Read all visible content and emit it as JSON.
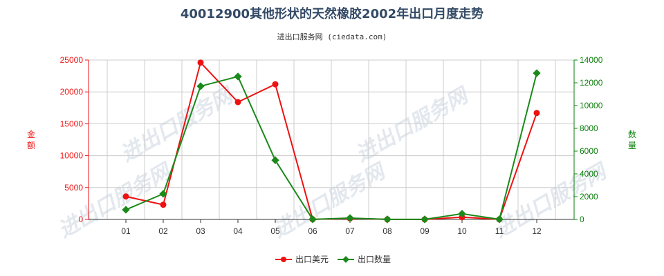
{
  "chart_data": {
    "type": "line",
    "title": "40012900其他形状的天然橡胶2002年出口月度走势",
    "subtitle": "进出口服务网 (ciedata.com)",
    "categories": [
      "01",
      "02",
      "03",
      "04",
      "05",
      "06",
      "07",
      "08",
      "09",
      "10",
      "11",
      "12"
    ],
    "y_left": {
      "label": "金额",
      "min": 0,
      "max": 25000,
      "ticks": [
        0,
        5000,
        10000,
        15000,
        20000,
        25000
      ],
      "color": "#ee1111"
    },
    "y_right": {
      "label": "数量",
      "min": 0,
      "max": 14000,
      "ticks": [
        0,
        2000,
        4000,
        6000,
        8000,
        10000,
        12000,
        14000
      ],
      "color": "#0a7f0a"
    },
    "series": [
      {
        "name": "出口美元",
        "axis": "left",
        "color": "#ee1111",
        "values": [
          3600,
          2300,
          24600,
          18400,
          21200,
          20,
          150,
          10,
          5,
          350,
          20,
          16700
        ]
      },
      {
        "name": "出口数量",
        "axis": "right",
        "color": "#1a8a1a",
        "values": [
          850,
          2250,
          11700,
          12550,
          5200,
          10,
          120,
          5,
          5,
          500,
          10,
          12850
        ]
      }
    ],
    "grid": true,
    "legend_position": "bottom-center"
  }
}
